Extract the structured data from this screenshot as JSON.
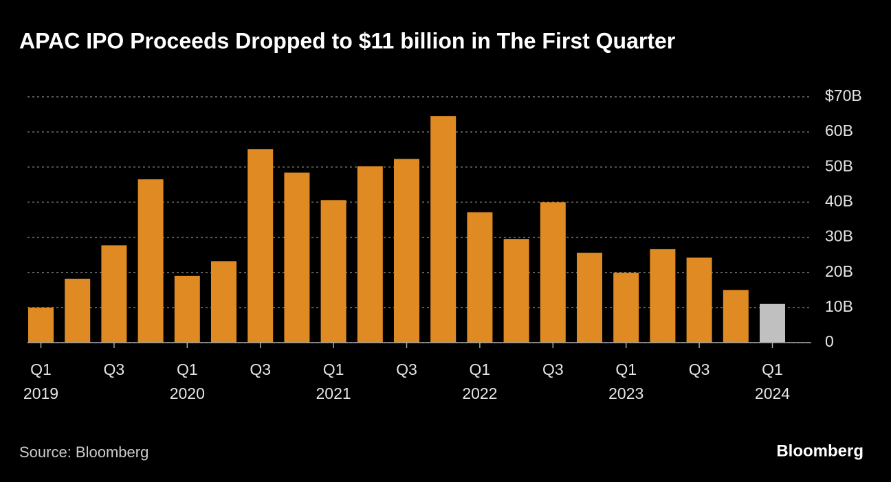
{
  "chart_data": {
    "type": "bar",
    "title": "APAC IPO Proceeds Dropped to $11 billion in The First Quarter",
    "categories": [
      "Q1",
      null,
      "Q3",
      null,
      "Q1",
      null,
      "Q3",
      null,
      "Q1",
      null,
      "Q3",
      null,
      "Q1",
      null,
      "Q3",
      null,
      "Q1",
      null,
      "Q3",
      null,
      "Q1"
    ],
    "category_years": [
      "2019",
      null,
      null,
      null,
      "2020",
      null,
      null,
      null,
      "2021",
      null,
      null,
      null,
      "2022",
      null,
      null,
      null,
      "2023",
      null,
      null,
      null,
      "2024"
    ],
    "values": [
      10,
      18.2,
      27.7,
      46.5,
      19,
      23.2,
      55.1,
      48.4,
      40.6,
      50.2,
      52.3,
      64.5,
      37.1,
      29.5,
      40,
      25.6,
      19.9,
      26.6,
      24.2,
      15,
      11
    ],
    "colors": [
      "#e08a24",
      "#e08a24",
      "#e08a24",
      "#e08a24",
      "#e08a24",
      "#e08a24",
      "#e08a24",
      "#e08a24",
      "#e08a24",
      "#e08a24",
      "#e08a24",
      "#e08a24",
      "#e08a24",
      "#e08a24",
      "#e08a24",
      "#e08a24",
      "#e08a24",
      "#e08a24",
      "#e08a24",
      "#e08a24",
      "#c0c0c0"
    ],
    "ylim": [
      0,
      70
    ],
    "yticks": [
      0,
      {
        "value": 10,
        "label": "10B"
      },
      {
        "value": 20,
        "label": "20B"
      },
      {
        "value": 30,
        "label": "30B"
      },
      {
        "value": 40,
        "label": "40B"
      },
      {
        "value": 50,
        "label": "50B"
      },
      {
        "value": 60,
        "label": "60B"
      },
      {
        "value": 70,
        "label": "$70B"
      }
    ],
    "grid": true,
    "source": "Source: Bloomberg",
    "brand": "Bloomberg"
  }
}
